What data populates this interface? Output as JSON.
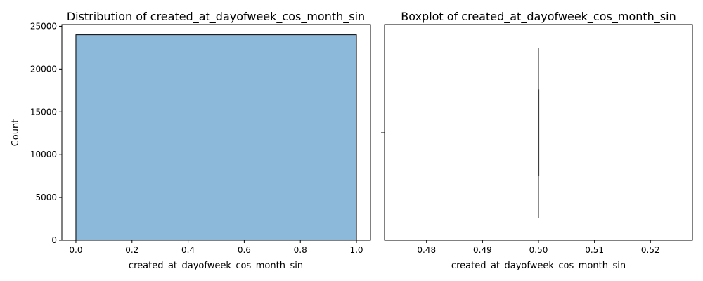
{
  "chart_data": [
    {
      "type": "bar",
      "title": "Distribution of created_at_dayofweek_cos_month_sin",
      "xlabel": "created_at_dayofweek_cos_month_sin",
      "ylabel": "Count",
      "bins": [
        {
          "x0": 0.0,
          "x1": 1.0,
          "count": 24000
        }
      ],
      "xlim": [
        -0.05,
        1.05
      ],
      "ylim": [
        0,
        25200
      ],
      "x_ticks": [
        {
          "value": 0.0,
          "label": "0.0"
        },
        {
          "value": 0.2,
          "label": "0.2"
        },
        {
          "value": 0.4,
          "label": "0.4"
        },
        {
          "value": 0.6,
          "label": "0.6"
        },
        {
          "value": 0.8,
          "label": "0.8"
        },
        {
          "value": 1.0,
          "label": "1.0"
        }
      ],
      "y_ticks": [
        {
          "value": 0,
          "label": "0"
        },
        {
          "value": 5000,
          "label": "5000"
        },
        {
          "value": 10000,
          "label": "10000"
        },
        {
          "value": 15000,
          "label": "15000"
        },
        {
          "value": 20000,
          "label": "20000"
        },
        {
          "value": 25000,
          "label": "25000"
        }
      ],
      "bar_color": "#8cb8da",
      "edge_color": "#000000",
      "grid": false
    },
    {
      "type": "boxplot",
      "title": "Boxplot of created_at_dayofweek_cos_month_sin",
      "xlabel": "created_at_dayofweek_cos_month_sin",
      "ylabel": "",
      "stats": {
        "min": 0.5,
        "q1": 0.5,
        "median": 0.5,
        "q3": 0.5,
        "max": 0.5
      },
      "xlim": [
        0.4725,
        0.5275
      ],
      "x_ticks": [
        {
          "value": 0.48,
          "label": "0.48"
        },
        {
          "value": 0.49,
          "label": "0.49"
        },
        {
          "value": 0.5,
          "label": "0.50"
        },
        {
          "value": 0.51,
          "label": "0.51"
        },
        {
          "value": 0.52,
          "label": "0.52"
        }
      ],
      "box_color": "#3f3f3f",
      "grid": false
    }
  ]
}
